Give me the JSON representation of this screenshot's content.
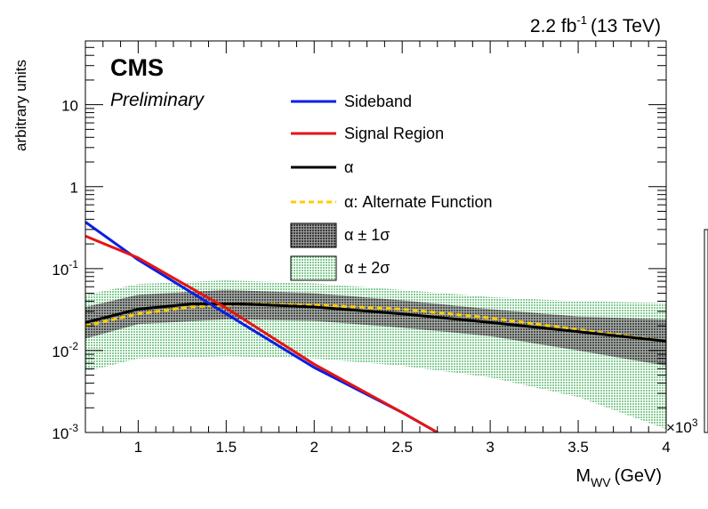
{
  "header": {
    "lumi_value": "2.2 fb",
    "lumi_exponent": "-1",
    "energy": "(13 TeV)"
  },
  "labels": {
    "experiment": "CMS",
    "status": "Preliminary",
    "xlabel_main": "M",
    "xlabel_sub": "WV",
    "xlabel_unit": "(GeV)",
    "ylabel": "arbitrary units",
    "x_multiplier_base": "×10",
    "x_multiplier_exp": "3"
  },
  "colors": {
    "sideband": "#0a1ee6",
    "signal_region": "#e61414",
    "alpha": "#000000",
    "alternate": "#ffcc00",
    "band_1sigma": "#555555",
    "band_2sigma": "#b7e3bf"
  },
  "chart_data": {
    "type": "line",
    "x_scale": "linear",
    "y_scale": "log",
    "xlim": [
      0.7,
      4.0
    ],
    "ylim": [
      0.001,
      60
    ],
    "x_ticks": [
      {
        "value": 1.0,
        "label": "1"
      },
      {
        "value": 1.5,
        "label": "1.5"
      },
      {
        "value": 2.0,
        "label": "2"
      },
      {
        "value": 2.5,
        "label": "2.5"
      },
      {
        "value": 3.0,
        "label": "3"
      },
      {
        "value": 3.5,
        "label": "3.5"
      },
      {
        "value": 4.0,
        "label": "4"
      }
    ],
    "y_ticks": [
      {
        "value": 0.001,
        "base": "10",
        "exp": "-3"
      },
      {
        "value": 0.01,
        "base": "10",
        "exp": "-2"
      },
      {
        "value": 0.1,
        "base": "10",
        "exp": "-1"
      },
      {
        "value": 1,
        "base": "1",
        "exp": ""
      },
      {
        "value": 10,
        "base": "10",
        "exp": ""
      }
    ],
    "legend_position": "top-center",
    "series": [
      {
        "name": "Sideband",
        "style": "line",
        "color": "#0a1ee6",
        "x": [
          0.7,
          1.0,
          1.5,
          2.0,
          2.5,
          2.7
        ],
        "y": [
          0.37,
          0.128,
          0.028,
          0.0062,
          0.00175,
          0.001
        ]
      },
      {
        "name": "Signal Region",
        "style": "line",
        "color": "#e61414",
        "x": [
          0.7,
          1.0,
          1.5,
          2.0,
          2.5,
          2.7
        ],
        "y": [
          0.25,
          0.135,
          0.033,
          0.0068,
          0.00175,
          0.001
        ]
      },
      {
        "name": "α",
        "style": "line",
        "color": "#000000",
        "x": [
          0.7,
          1.0,
          1.3,
          1.6,
          2.0,
          2.5,
          3.0,
          3.5,
          4.0
        ],
        "y": [
          0.022,
          0.032,
          0.037,
          0.037,
          0.034,
          0.028,
          0.022,
          0.017,
          0.013
        ]
      },
      {
        "name": "α: Alternate Function",
        "style": "dashed",
        "color": "#ffcc00",
        "x": [
          0.7,
          1.0,
          1.3,
          1.6,
          2.0,
          2.5,
          3.0,
          3.5,
          4.0
        ],
        "y": [
          0.02,
          0.028,
          0.034,
          0.037,
          0.036,
          0.032,
          0.025,
          0.018,
          0.013
        ]
      },
      {
        "name": "α ± 1σ",
        "style": "band",
        "color": "#555555",
        "x": [
          0.7,
          1.0,
          1.5,
          2.0,
          2.5,
          3.0,
          3.5,
          4.0
        ],
        "y_low": [
          0.014,
          0.021,
          0.024,
          0.023,
          0.019,
          0.015,
          0.01,
          0.0065
        ],
        "y_high": [
          0.034,
          0.048,
          0.055,
          0.05,
          0.041,
          0.032,
          0.026,
          0.024
        ]
      },
      {
        "name": "α ± 2σ",
        "style": "band",
        "color": "#b7e3bf",
        "x": [
          0.7,
          1.0,
          1.5,
          2.0,
          2.5,
          3.0,
          3.5,
          4.0
        ],
        "y_low": [
          0.0055,
          0.008,
          0.0085,
          0.008,
          0.0065,
          0.0047,
          0.0027,
          0.0011
        ],
        "y_high": [
          0.048,
          0.065,
          0.072,
          0.066,
          0.055,
          0.045,
          0.04,
          0.038
        ]
      }
    ]
  }
}
